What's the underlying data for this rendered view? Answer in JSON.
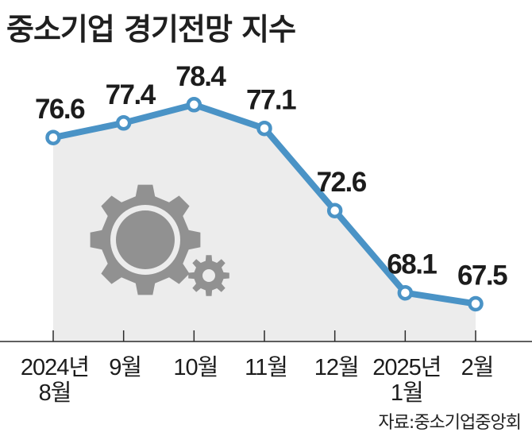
{
  "title": "중소기업 경기전망 지수",
  "source": "자료:중소기업중앙회",
  "colors": {
    "line": "#4a93c6",
    "area": "#ececec",
    "marker_fill": "#ffffff",
    "icon": "#919191"
  },
  "icon": "gears-icon",
  "chart_data": {
    "type": "line",
    "title": "중소기업 경기전망 지수",
    "categories": [
      [
        "2024년",
        "8월"
      ],
      [
        "9월"
      ],
      [
        "10월"
      ],
      [
        "11월"
      ],
      [
        "12월"
      ],
      [
        "2025년",
        "1월"
      ],
      [
        "2월"
      ]
    ],
    "values": [
      76.6,
      77.4,
      78.4,
      77.1,
      72.6,
      68.1,
      67.5
    ],
    "labels": [
      "76.6",
      "77.4",
      "78.4",
      "77.1",
      "72.6",
      "68.1",
      "67.5"
    ],
    "ylim": [
      60,
      81
    ],
    "grid": false,
    "legend": "none"
  }
}
